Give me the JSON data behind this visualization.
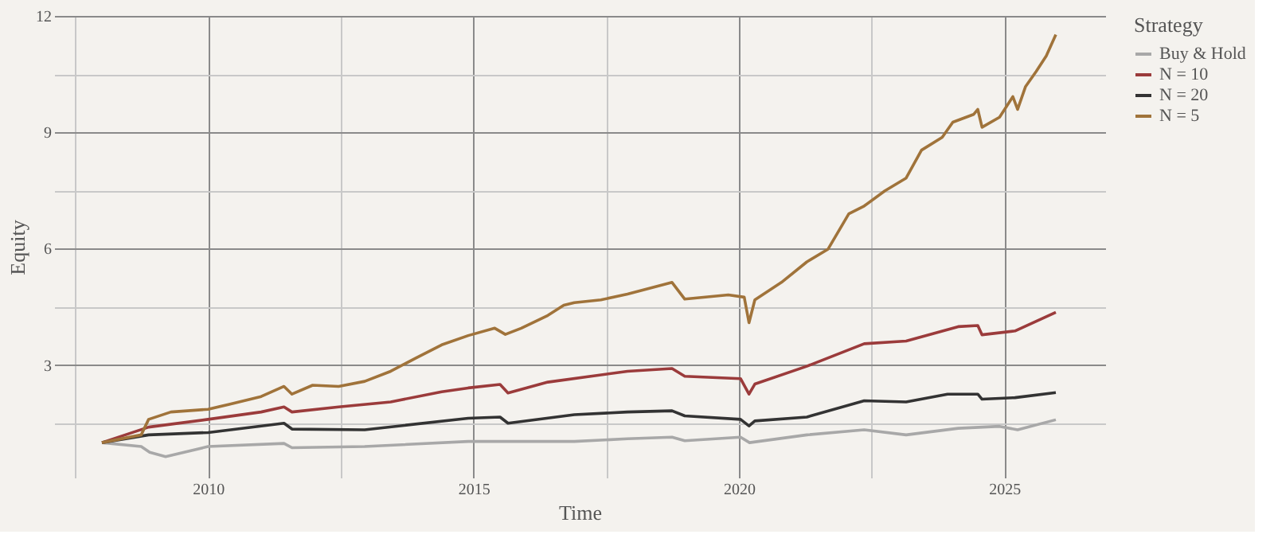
{
  "chart_data": {
    "type": "line",
    "xlabel": "Time",
    "ylabel": "Equity",
    "legend_title": "Strategy",
    "legend": "right",
    "grid": true,
    "line_style": "solid",
    "marker": "none",
    "xlim": [
      2007.1,
      2026.9
    ],
    "ylim": [
      0.1,
      12
    ],
    "xticks": [
      {
        "value": 2007.5,
        "label": null
      },
      2010,
      {
        "value": 2012.5,
        "label": null
      },
      2015,
      {
        "value": 2017.5,
        "label": null
      },
      2020,
      {
        "value": 2022.5,
        "label": null
      },
      2025
    ],
    "yticks": [
      {
        "value": 1.5,
        "label": null
      },
      3,
      {
        "value": 4.5,
        "label": null
      },
      6,
      {
        "value": 7.5,
        "label": null
      },
      9,
      {
        "value": 10.5,
        "label": null
      },
      12
    ],
    "series": [
      {
        "name": "Buy & Hold",
        "color": "#a8a8a8",
        "x": [
          2008.0,
          2008.74,
          2008.9,
          2009.2,
          2010.0,
          2011.43,
          2011.58,
          2012.95,
          2014.9,
          2016.9,
          2017.9,
          2018.74,
          2018.98,
          2020.03,
          2020.2,
          2021.28,
          2022.36,
          2023.15,
          2024.13,
          2024.91,
          2025.25,
          2025.97
        ],
        "values": [
          1.0,
          0.9,
          0.75,
          0.64,
          0.9,
          0.98,
          0.87,
          0.9,
          1.03,
          1.03,
          1.1,
          1.14,
          1.05,
          1.14,
          1.0,
          1.2,
          1.33,
          1.2,
          1.37,
          1.42,
          1.33,
          1.59
        ]
      },
      {
        "name": "N = 10",
        "color": "#9b3b3b",
        "x": [
          2008.0,
          2008.88,
          2010.0,
          2011.0,
          2011.43,
          2011.58,
          2012.46,
          2013.44,
          2014.4,
          2014.9,
          2015.5,
          2015.65,
          2016.4,
          2017.9,
          2018.74,
          2018.98,
          2020.03,
          2020.19,
          2020.3,
          2021.28,
          2022.36,
          2023.15,
          2024.13,
          2024.5,
          2024.58,
          2025.2,
          2025.97
        ],
        "values": [
          1.0,
          1.4,
          1.6,
          1.79,
          1.92,
          1.79,
          1.92,
          2.05,
          2.31,
          2.41,
          2.5,
          2.28,
          2.56,
          2.84,
          2.91,
          2.71,
          2.65,
          2.25,
          2.51,
          2.97,
          3.55,
          3.62,
          3.99,
          4.02,
          3.78,
          3.88,
          4.36
        ]
      },
      {
        "name": "N = 20",
        "color": "#333333",
        "x": [
          2008.0,
          2008.88,
          2010.0,
          2011.43,
          2011.58,
          2012.95,
          2014.9,
          2015.5,
          2015.65,
          2016.9,
          2017.9,
          2018.74,
          2018.98,
          2020.03,
          2020.19,
          2020.3,
          2021.28,
          2022.36,
          2023.15,
          2023.93,
          2024.5,
          2024.58,
          2025.2,
          2025.97
        ],
        "values": [
          1.0,
          1.2,
          1.26,
          1.5,
          1.35,
          1.33,
          1.63,
          1.66,
          1.5,
          1.72,
          1.79,
          1.82,
          1.69,
          1.6,
          1.43,
          1.56,
          1.66,
          2.08,
          2.05,
          2.25,
          2.25,
          2.12,
          2.16,
          2.29
        ]
      },
      {
        "name": "N = 5",
        "color": "#a0733a",
        "x": [
          2008.0,
          2008.74,
          2008.88,
          2009.3,
          2010.0,
          2010.4,
          2011.0,
          2011.43,
          2011.58,
          2011.97,
          2012.46,
          2012.95,
          2013.44,
          2013.9,
          2014.4,
          2014.9,
          2015.4,
          2015.6,
          2015.9,
          2016.4,
          2016.7,
          2016.9,
          2017.4,
          2017.9,
          2018.74,
          2018.98,
          2019.8,
          2020.1,
          2020.19,
          2020.3,
          2020.8,
          2021.28,
          2021.68,
          2022.07,
          2022.36,
          2022.75,
          2023.15,
          2023.44,
          2023.83,
          2024.03,
          2024.42,
          2024.5,
          2024.58,
          2024.91,
          2025.16,
          2025.25,
          2025.4,
          2025.6,
          2025.79,
          2025.97
        ],
        "values": [
          1.0,
          1.2,
          1.6,
          1.79,
          1.86,
          1.99,
          2.19,
          2.45,
          2.25,
          2.48,
          2.45,
          2.58,
          2.84,
          3.17,
          3.52,
          3.76,
          3.95,
          3.79,
          3.95,
          4.28,
          4.54,
          4.61,
          4.68,
          4.83,
          5.13,
          4.7,
          4.81,
          4.75,
          4.09,
          4.68,
          5.13,
          5.66,
          5.99,
          6.9,
          7.1,
          7.49,
          7.82,
          8.54,
          8.87,
          9.26,
          9.46,
          9.59,
          9.13,
          9.39,
          9.92,
          9.59,
          10.18,
          10.57,
          10.97,
          11.52
        ]
      }
    ]
  }
}
